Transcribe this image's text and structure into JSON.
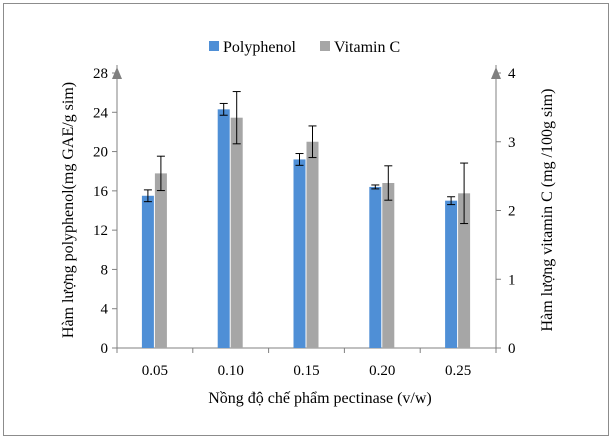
{
  "chart_data": {
    "type": "bar",
    "title": "",
    "categories": [
      "0.05",
      "0.10",
      "0.15",
      "0.20",
      "0.25"
    ],
    "xlabel": "Nồng độ chế phẩm pectinase (v/w)",
    "ylabel": "Hàm lượng polyphenol(mg GAE/g sim)",
    "y2label": "Hàm lượng vitamin C (mg /100g sim)",
    "ylim": [
      0,
      28
    ],
    "yticks": [
      0,
      4,
      8,
      12,
      16,
      20,
      24,
      28
    ],
    "y2lim": [
      0,
      4
    ],
    "y2ticks": [
      0,
      1,
      2,
      3,
      4
    ],
    "legend_position": "top",
    "grid": false,
    "series": [
      {
        "name": "Polyphenol",
        "axis": "left",
        "color": "#4f8fd6",
        "values": [
          15.5,
          24.3,
          19.2,
          16.4,
          15.0
        ],
        "errors": [
          0.6,
          0.6,
          0.6,
          0.2,
          0.4
        ]
      },
      {
        "name": "Vitamin C",
        "axis": "right",
        "color": "#a6a6a6",
        "values": [
          2.54,
          3.35,
          3.0,
          2.4,
          2.25
        ],
        "errors": [
          0.25,
          0.38,
          0.23,
          0.25,
          0.44
        ]
      }
    ]
  }
}
